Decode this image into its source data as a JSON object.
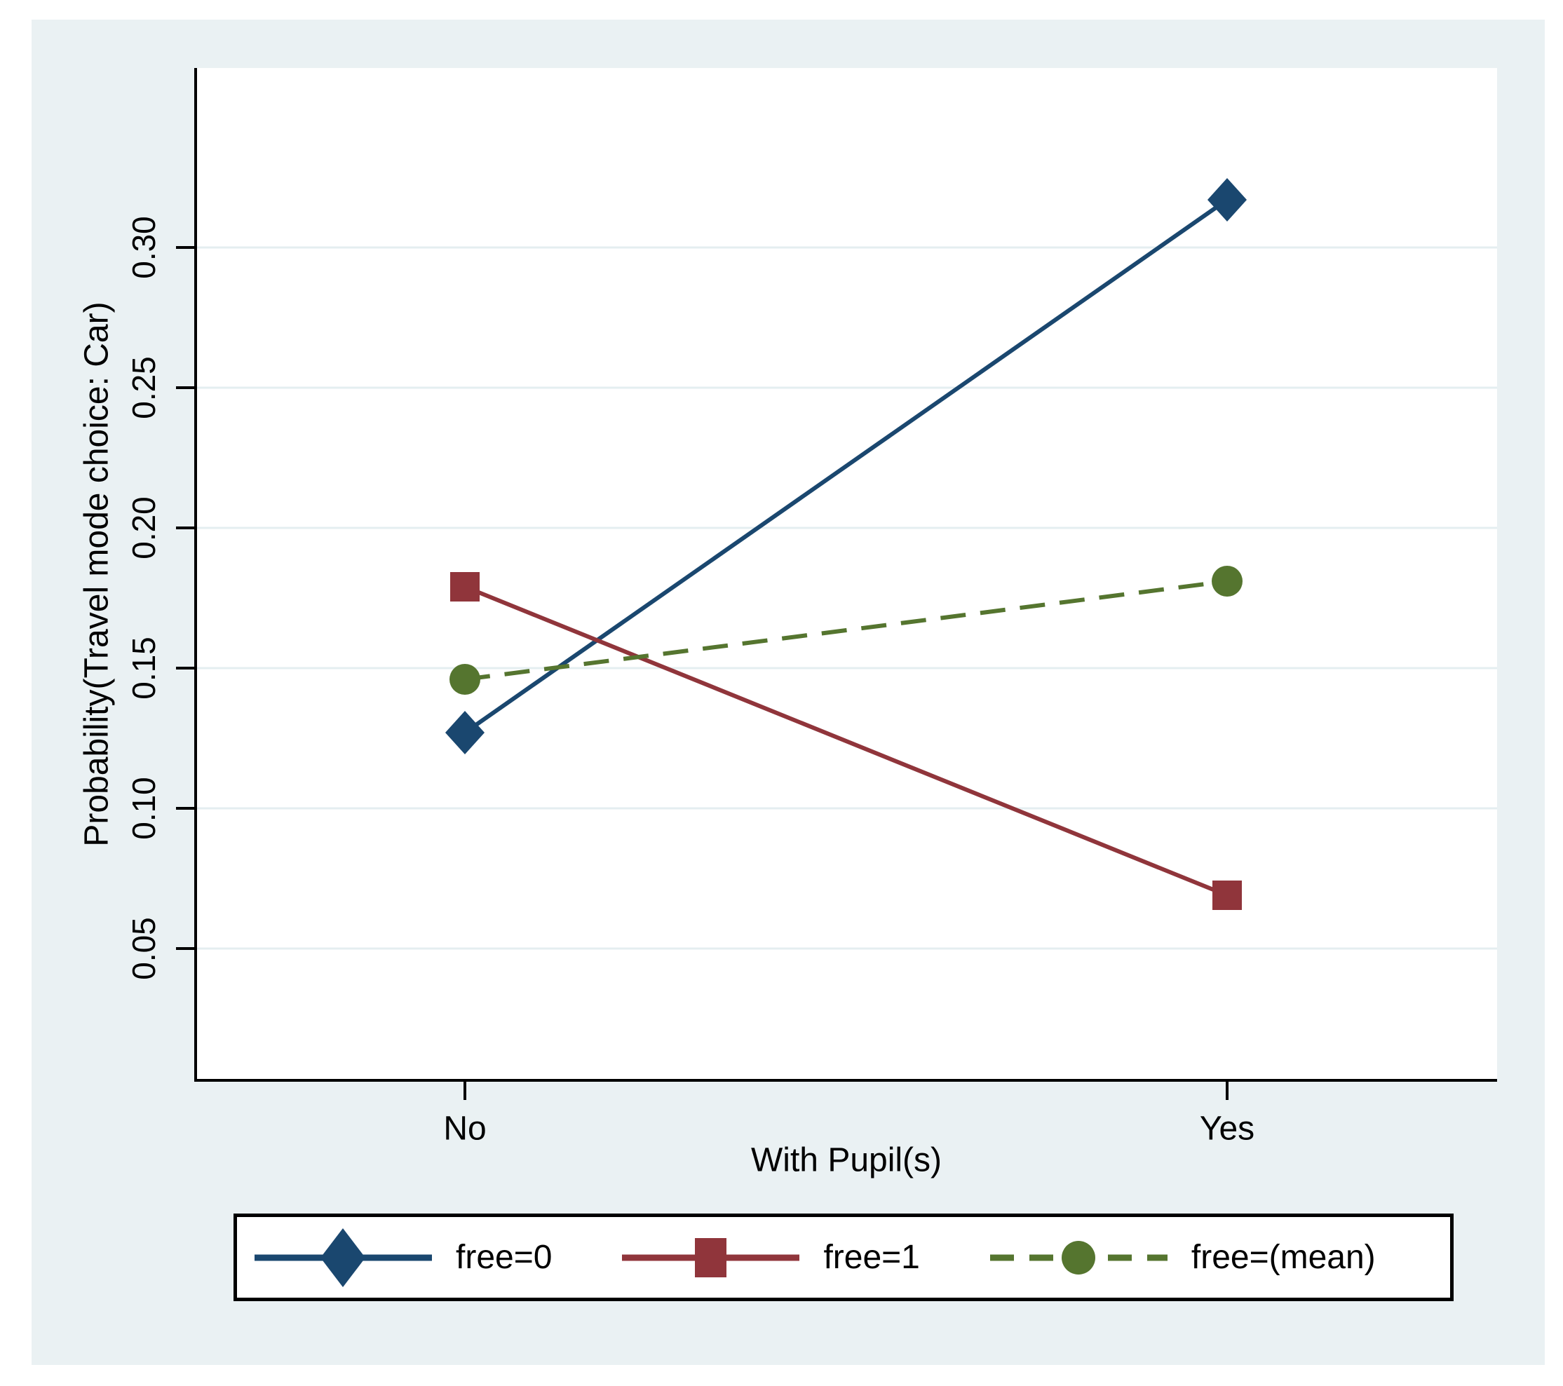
{
  "figure": {
    "background": "#ffffff",
    "canvas_color": "#eaf1f3",
    "plot_background": "#ffffff",
    "axis_color": "#000000",
    "grid_color": "#e4eef0",
    "text_color": "#000000",
    "legend_border_color": "#000000"
  },
  "chart_data": {
    "type": "line",
    "title": "",
    "xlabel": "With Pupil(s)",
    "ylabel": "Probability(Travel mode choice: Car)",
    "categories": [
      "No",
      "Yes"
    ],
    "y_ticks": [
      0.05,
      0.1,
      0.15,
      0.2,
      0.25,
      0.3
    ],
    "y_tick_labels": [
      "0.05",
      "0.10",
      "0.15",
      "0.20",
      "0.25",
      "0.30"
    ],
    "ylim": [
      0.003,
      0.364
    ],
    "grid": "horizontal",
    "legend_position": "bottom",
    "series": [
      {
        "name": "free=0",
        "color": "#1a476f",
        "marker": "diamond",
        "line_style": "solid",
        "values": [
          0.127,
          0.317
        ]
      },
      {
        "name": "free=1",
        "color": "#90353b",
        "marker": "square",
        "line_style": "solid",
        "values": [
          0.179,
          0.069
        ]
      },
      {
        "name": "free=(mean)",
        "color": "#55752f",
        "marker": "circle",
        "line_style": "dashed",
        "values": [
          0.146,
          0.181
        ]
      }
    ]
  }
}
